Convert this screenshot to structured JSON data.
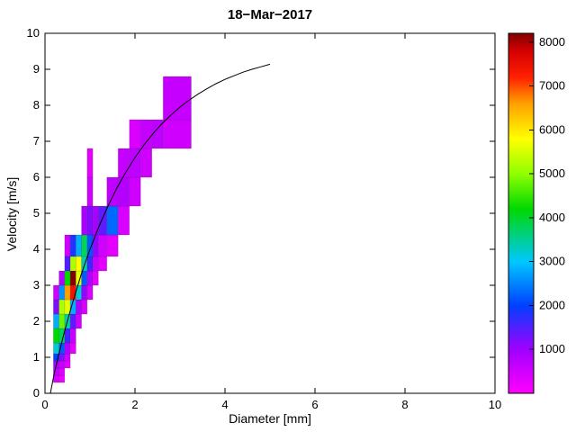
{
  "title": "18−Mar−2017",
  "axes": {
    "x_label": "Diameter [mm]",
    "y_label": "Velocity [m/s]",
    "x_ticks": [
      0,
      2,
      4,
      6,
      8,
      10
    ],
    "y_ticks": [
      0,
      1,
      2,
      3,
      4,
      5,
      6,
      7,
      8,
      9,
      10
    ]
  },
  "colorbar": {
    "min": 0,
    "max": 8200,
    "ticks": [
      1000,
      2000,
      3000,
      4000,
      5000,
      6000,
      7000,
      8000
    ],
    "stops": [
      {
        "v": 0,
        "c": "#ff00ff"
      },
      {
        "v": 1000,
        "c": "#a000ff"
      },
      {
        "v": 2000,
        "c": "#0040ff"
      },
      {
        "v": 3000,
        "c": "#00c8ff"
      },
      {
        "v": 4200,
        "c": "#00d800"
      },
      {
        "v": 5000,
        "c": "#90ff00"
      },
      {
        "v": 5800,
        "c": "#ffff00"
      },
      {
        "v": 6600,
        "c": "#ffa000"
      },
      {
        "v": 7200,
        "c": "#ff2000"
      },
      {
        "v": 7800,
        "c": "#d40000"
      },
      {
        "v": 8200,
        "c": "#800000"
      }
    ]
  },
  "chart_data": {
    "type": "heatmap",
    "title": "18−Mar−2017",
    "xlabel": "Diameter [mm]",
    "ylabel": "Velocity [m/s]",
    "xlim": [
      0,
      10
    ],
    "ylim": [
      0,
      10
    ],
    "grid": false,
    "legend": "colorbar-right",
    "diameter_bin_edges": [
      0.187,
      0.312,
      0.437,
      0.562,
      0.687,
      0.812,
      0.937,
      1.062,
      1.187,
      1.375,
      1.625,
      1.875,
      2.125,
      2.375,
      2.625,
      3.25
    ],
    "velocity_bin_edges": [
      0.3,
      0.5,
      0.7,
      0.9,
      1.1,
      1.4,
      1.8,
      2.2,
      2.6,
      3.0,
      3.4,
      3.8,
      4.4,
      5.2,
      6.0,
      6.8,
      7.6,
      8.8
    ],
    "counts_rows_bottom_to_top": [
      [
        400,
        200,
        0,
        0,
        0,
        0,
        0,
        0,
        0,
        0,
        0,
        0,
        0,
        0,
        0
      ],
      [
        600,
        400,
        0,
        0,
        0,
        0,
        0,
        0,
        0,
        0,
        0,
        0,
        0,
        0,
        0
      ],
      [
        900,
        600,
        300,
        0,
        0,
        0,
        0,
        0,
        0,
        0,
        0,
        0,
        0,
        0,
        0
      ],
      [
        2000,
        1200,
        500,
        0,
        0,
        0,
        0,
        0,
        0,
        0,
        0,
        0,
        0,
        0,
        0
      ],
      [
        3200,
        2200,
        800,
        300,
        0,
        0,
        0,
        0,
        0,
        0,
        0,
        0,
        0,
        0,
        0
      ],
      [
        4200,
        3800,
        1600,
        600,
        0,
        0,
        0,
        0,
        0,
        0,
        0,
        0,
        0,
        0,
        0
      ],
      [
        2800,
        4800,
        3400,
        1400,
        500,
        0,
        0,
        0,
        0,
        0,
        0,
        0,
        0,
        0,
        0
      ],
      [
        1200,
        5200,
        5600,
        2800,
        900,
        400,
        0,
        0,
        0,
        0,
        0,
        0,
        0,
        0,
        0
      ],
      [
        500,
        2600,
        6600,
        7400,
        3200,
        1100,
        400,
        0,
        0,
        0,
        0,
        0,
        0,
        0,
        0
      ],
      [
        0,
        800,
        4200,
        8200,
        5600,
        2200,
        800,
        300,
        0,
        0,
        0,
        0,
        0,
        0,
        0
      ],
      [
        0,
        0,
        1500,
        5200,
        5800,
        3400,
        1600,
        600,
        300,
        0,
        0,
        0,
        0,
        0,
        0
      ],
      [
        0,
        0,
        500,
        1800,
        2800,
        3800,
        2200,
        1100,
        500,
        300,
        0,
        0,
        0,
        0,
        0
      ],
      [
        0,
        0,
        0,
        0,
        0,
        900,
        1200,
        900,
        1400,
        2300,
        400,
        0,
        0,
        0,
        0
      ],
      [
        0,
        0,
        0,
        0,
        0,
        0,
        500,
        0,
        0,
        700,
        800,
        500,
        0,
        0,
        0
      ],
      [
        0,
        0,
        0,
        0,
        0,
        0,
        300,
        0,
        0,
        0,
        600,
        700,
        500,
        0,
        0
      ],
      [
        0,
        0,
        0,
        0,
        0,
        0,
        0,
        0,
        0,
        0,
        0,
        400,
        600,
        700,
        500
      ],
      [
        0,
        0,
        0,
        0,
        0,
        0,
        0,
        0,
        0,
        0,
        0,
        0,
        0,
        0,
        600
      ]
    ],
    "curve": {
      "name": "terminal-velocity-curve",
      "points": [
        [
          0.12,
          0.0
        ],
        [
          0.2,
          0.52
        ],
        [
          0.3,
          1.05
        ],
        [
          0.4,
          1.55
        ],
        [
          0.5,
          2.02
        ],
        [
          0.6,
          2.46
        ],
        [
          0.7,
          2.88
        ],
        [
          0.8,
          3.28
        ],
        [
          0.9,
          3.65
        ],
        [
          1.0,
          4.0
        ],
        [
          1.2,
          4.64
        ],
        [
          1.4,
          5.2
        ],
        [
          1.6,
          5.71
        ],
        [
          1.8,
          6.15
        ],
        [
          2.0,
          6.55
        ],
        [
          2.2,
          6.9
        ],
        [
          2.4,
          7.21
        ],
        [
          2.6,
          7.49
        ],
        [
          2.8,
          7.73
        ],
        [
          3.0,
          7.95
        ],
        [
          3.2,
          8.14
        ],
        [
          3.4,
          8.31
        ],
        [
          3.6,
          8.46
        ],
        [
          3.8,
          8.6
        ],
        [
          4.0,
          8.72
        ],
        [
          4.2,
          8.82
        ],
        [
          4.4,
          8.92
        ],
        [
          4.6,
          9.0
        ],
        [
          4.8,
          9.07
        ],
        [
          5.0,
          9.14
        ]
      ]
    }
  }
}
